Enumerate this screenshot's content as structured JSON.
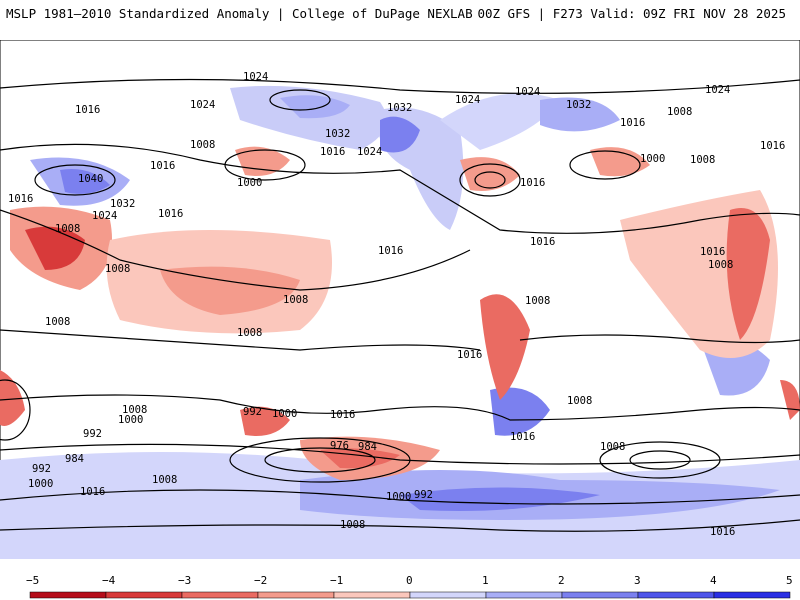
{
  "header": {
    "left": "MSLP 1981–2010 Standardized Anomaly | College of DuPage NEXLAB",
    "right": "00Z GFS | F273 Valid: 09Z FRI NOV 28 2025"
  },
  "isobars": [
    "1024",
    "1016",
    "1024",
    "1032",
    "1024",
    "1024",
    "1032",
    "1024",
    "1008",
    "1032",
    "1040",
    "1016",
    "1008",
    "1000",
    "1016",
    "1016",
    "1032",
    "1024",
    "1016",
    "1016",
    "1024",
    "1000",
    "1008",
    "1016",
    "1016",
    "1008",
    "1008",
    "1008",
    "1008",
    "1016",
    "1008",
    "1016",
    "1008",
    "1016",
    "1008",
    "1008",
    "992",
    "1000",
    "1016",
    "976",
    "984",
    "1016",
    "1008",
    "992",
    "1000",
    "984",
    "992",
    "1000",
    "1016",
    "1008",
    "1000",
    "992",
    "1008",
    "1016",
    "1008",
    "1016"
  ],
  "colorbar": {
    "labels": [
      "−5",
      "−4",
      "−3",
      "−2",
      "−1",
      "0",
      "1",
      "2",
      "3",
      "4",
      "5"
    ],
    "colors": [
      "#b50d1a",
      "#d83a3a",
      "#ea6b62",
      "#f49b8c",
      "#fbc7bc",
      "#ffffff",
      "#d3d6fb",
      "#a9aef6",
      "#7b80ef",
      "#4f55ea",
      "#2a2fe4"
    ]
  }
}
